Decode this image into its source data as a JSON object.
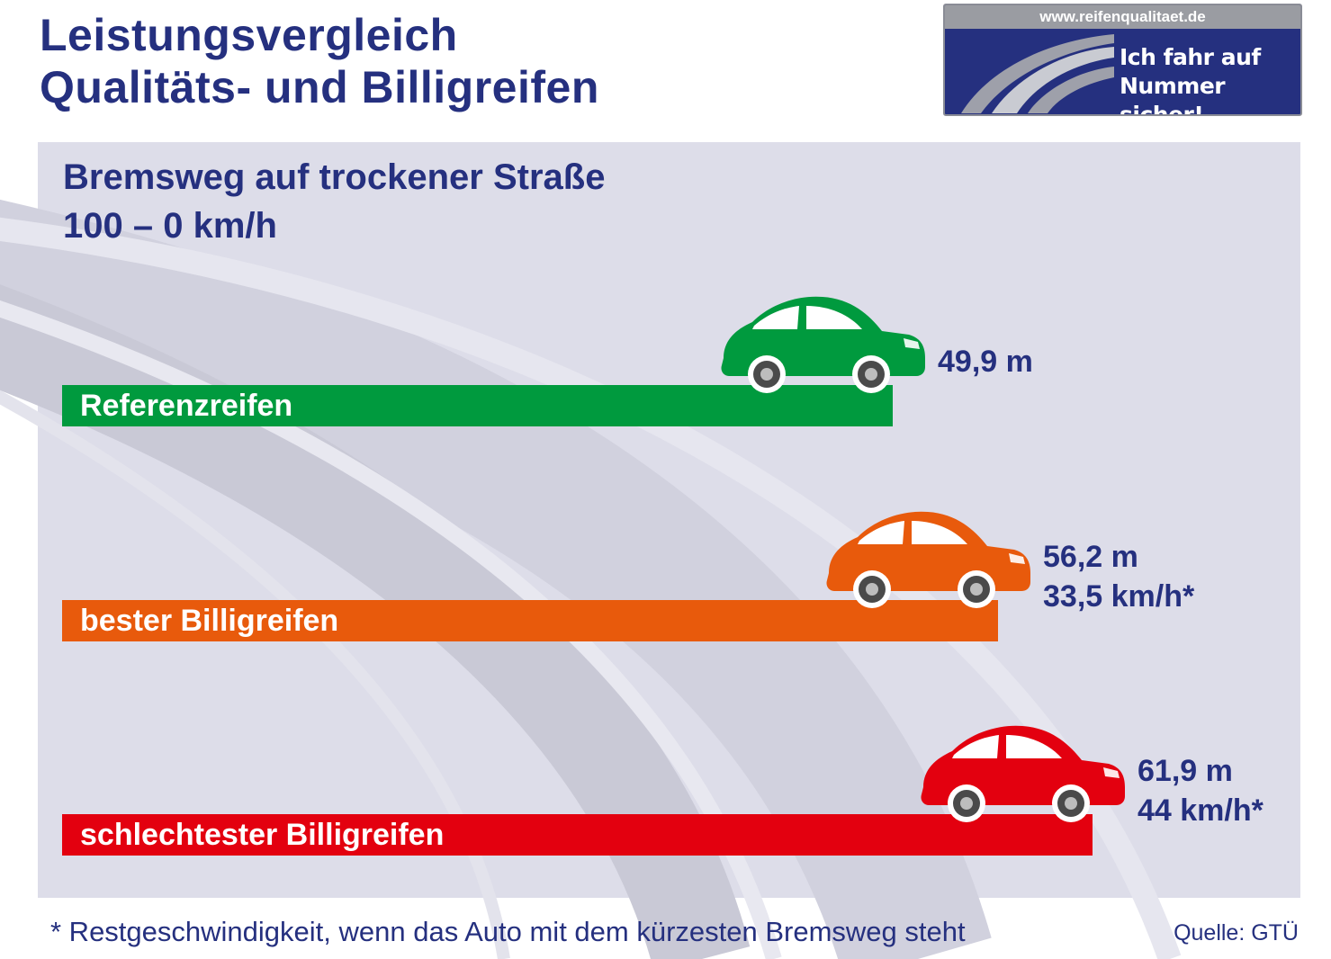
{
  "header": {
    "title_line1": "Leistungsvergleich",
    "title_line2": "Qualitäts- und Billigreifen"
  },
  "logo": {
    "url": "www.reifenqualitaet.de",
    "slogan_line1": "Ich fahr auf",
    "slogan_line2": "Nummer sicher!"
  },
  "chart_data": {
    "type": "bar",
    "orientation": "horizontal",
    "title": "Bremsweg auf trockener Straße",
    "subtitle": "100 – 0 km/h",
    "categories": [
      "Referenzreifen",
      "bester Billigreifen",
      "schlechtester Billigreifen"
    ],
    "values": [
      49.9,
      56.2,
      61.9
    ],
    "unit": "m",
    "value_labels": [
      "49,9 m",
      "56,2 m",
      "61,9 m"
    ],
    "secondary_labels": [
      "",
      "33,5 km/h*",
      "44 km/h*"
    ],
    "colors": [
      "#009a3e",
      "#e85a0c",
      "#e3000f"
    ],
    "xlim": [
      0,
      64
    ]
  },
  "footer": {
    "footnote": "* Restgeschwindigkeit, wenn das Auto mit dem kürzesten Bremsweg steht",
    "source": "Quelle: GTÜ"
  },
  "colors": {
    "brand_blue": "#25307f",
    "panel_bg": "#dddde9"
  },
  "icons": [
    "car-icon",
    "road-logo-icon"
  ]
}
